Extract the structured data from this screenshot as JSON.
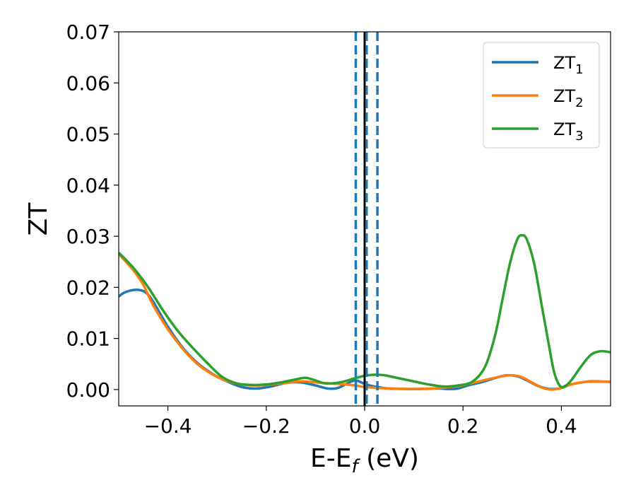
{
  "chart_data": {
    "type": "line",
    "xlabel": "E-E",
    "xlabel_sub": "f",
    "xlabel_unit": " (eV)",
    "ylabel": "ZT",
    "xlim": [
      -0.5,
      0.5
    ],
    "ylim": [
      -0.0032,
      0.07
    ],
    "x_ticks": [
      -0.4,
      -0.2,
      0.0,
      0.2,
      0.4
    ],
    "x_tick_labels": [
      "−0.4",
      "−0.2",
      "0.0",
      "0.2",
      "0.4"
    ],
    "y_ticks": [
      0.0,
      0.01,
      0.02,
      0.03,
      0.04,
      0.05,
      0.06,
      0.07
    ],
    "y_tick_labels": [
      "0.00",
      "0.01",
      "0.02",
      "0.03",
      "0.04",
      "0.05",
      "0.06",
      "0.07"
    ],
    "grid": false,
    "legend_position": "top-right",
    "vertical_lines": [
      {
        "x": -0.018,
        "style": "dashed",
        "color": "#1f77b4"
      },
      {
        "x": 0.0,
        "style": "solid",
        "color": "#000000"
      },
      {
        "x": 0.004,
        "style": "dashed",
        "color": "#1f77b4"
      },
      {
        "x": 0.026,
        "style": "dashed",
        "color": "#1f77b4"
      }
    ],
    "series": [
      {
        "name": "ZT",
        "name_sub": "1",
        "color": "#1f77b4",
        "points": [
          [
            -0.5,
            0.0182
          ],
          [
            -0.49,
            0.0189
          ],
          [
            -0.475,
            0.0194
          ],
          [
            -0.46,
            0.0195
          ],
          [
            -0.445,
            0.019
          ],
          [
            -0.43,
            0.0172
          ],
          [
            -0.4,
            0.0123
          ],
          [
            -0.37,
            0.0082
          ],
          [
            -0.34,
            0.0052
          ],
          [
            -0.31,
            0.0031
          ],
          [
            -0.28,
            0.0016
          ],
          [
            -0.25,
            0.0005
          ],
          [
            -0.22,
            0.0002
          ],
          [
            -0.19,
            0.0006
          ],
          [
            -0.16,
            0.0013
          ],
          [
            -0.13,
            0.0014
          ],
          [
            -0.1,
            0.0008
          ],
          [
            -0.075,
            0.0002
          ],
          [
            -0.055,
            0.0003
          ],
          [
            -0.035,
            0.0012
          ],
          [
            -0.018,
            0.0018
          ],
          [
            0.0,
            0.0011
          ],
          [
            0.02,
            0.0006
          ],
          [
            0.05,
            0.0002
          ],
          [
            0.1,
            0.0001
          ],
          [
            0.15,
            0.0002
          ],
          [
            0.17,
            0.0001
          ],
          [
            0.19,
            0.0002
          ],
          [
            0.21,
            0.0008
          ],
          [
            0.24,
            0.0015
          ],
          [
            0.27,
            0.0024
          ],
          [
            0.29,
            0.0028
          ],
          [
            0.31,
            0.0026
          ],
          [
            0.33,
            0.0018
          ],
          [
            0.35,
            0.0008
          ],
          [
            0.37,
            0.0002
          ],
          [
            0.385,
            0.0001
          ],
          [
            0.4,
            0.0003
          ],
          [
            0.41,
            0.0008
          ],
          [
            0.43,
            0.0012
          ],
          [
            0.46,
            0.0016
          ],
          [
            0.5,
            0.0015
          ]
        ]
      },
      {
        "name": "ZT",
        "name_sub": "2",
        "color": "#ff7f0e",
        "points": [
          [
            -0.5,
            0.0265
          ],
          [
            -0.49,
            0.0255
          ],
          [
            -0.47,
            0.0233
          ],
          [
            -0.45,
            0.0205
          ],
          [
            -0.43,
            0.0165
          ],
          [
            -0.4,
            0.0118
          ],
          [
            -0.37,
            0.008
          ],
          [
            -0.34,
            0.005
          ],
          [
            -0.31,
            0.003
          ],
          [
            -0.28,
            0.0017
          ],
          [
            -0.25,
            0.001
          ],
          [
            -0.22,
            0.0008
          ],
          [
            -0.19,
            0.001
          ],
          [
            -0.16,
            0.0013
          ],
          [
            -0.13,
            0.0016
          ],
          [
            -0.1,
            0.0014
          ],
          [
            -0.07,
            0.0012
          ],
          [
            -0.04,
            0.001
          ],
          [
            -0.018,
            0.0008
          ],
          [
            0.0,
            0.0005
          ],
          [
            0.05,
            0.0002
          ],
          [
            0.1,
            0.0001
          ],
          [
            0.15,
            0.0003
          ],
          [
            0.19,
            0.0007
          ],
          [
            0.22,
            0.0013
          ],
          [
            0.25,
            0.002
          ],
          [
            0.28,
            0.0026
          ],
          [
            0.3,
            0.0028
          ],
          [
            0.32,
            0.0024
          ],
          [
            0.34,
            0.0014
          ],
          [
            0.36,
            0.0004
          ],
          [
            0.38,
            0.0
          ],
          [
            0.4,
            0.0003
          ],
          [
            0.42,
            0.001
          ],
          [
            0.45,
            0.0015
          ],
          [
            0.5,
            0.0015
          ]
        ]
      },
      {
        "name": "ZT",
        "name_sub": "3",
        "color": "#2ca02c",
        "points": [
          [
            -0.5,
            0.0268
          ],
          [
            -0.47,
            0.0238
          ],
          [
            -0.44,
            0.02
          ],
          [
            -0.41,
            0.0155
          ],
          [
            -0.38,
            0.0115
          ],
          [
            -0.35,
            0.0082
          ],
          [
            -0.32,
            0.0052
          ],
          [
            -0.29,
            0.0025
          ],
          [
            -0.26,
            0.0012
          ],
          [
            -0.23,
            0.0009
          ],
          [
            -0.2,
            0.001
          ],
          [
            -0.17,
            0.0014
          ],
          [
            -0.14,
            0.002
          ],
          [
            -0.12,
            0.0023
          ],
          [
            -0.1,
            0.0018
          ],
          [
            -0.08,
            0.0012
          ],
          [
            -0.05,
            0.0014
          ],
          [
            -0.02,
            0.0022
          ],
          [
            0.0,
            0.0027
          ],
          [
            0.02,
            0.0029
          ],
          [
            0.04,
            0.0028
          ],
          [
            0.07,
            0.0022
          ],
          [
            0.1,
            0.0016
          ],
          [
            0.13,
            0.001
          ],
          [
            0.16,
            0.0006
          ],
          [
            0.19,
            0.0008
          ],
          [
            0.22,
            0.0016
          ],
          [
            0.245,
            0.0045
          ],
          [
            0.265,
            0.0105
          ],
          [
            0.28,
            0.0175
          ],
          [
            0.295,
            0.0245
          ],
          [
            0.31,
            0.0293
          ],
          [
            0.32,
            0.0302
          ],
          [
            0.33,
            0.0293
          ],
          [
            0.345,
            0.0245
          ],
          [
            0.36,
            0.0165
          ],
          [
            0.375,
            0.0085
          ],
          [
            0.385,
            0.0035
          ],
          [
            0.395,
            0.001
          ],
          [
            0.405,
            0.0005
          ],
          [
            0.42,
            0.0018
          ],
          [
            0.44,
            0.0045
          ],
          [
            0.46,
            0.0068
          ],
          [
            0.48,
            0.0075
          ],
          [
            0.5,
            0.0073
          ]
        ]
      }
    ]
  }
}
